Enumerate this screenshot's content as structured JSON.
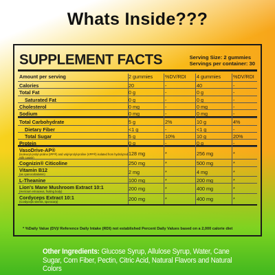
{
  "title": "Whats Inside???",
  "panel": {
    "heading": "SUPPLEMENT FACTS",
    "serving_size": "Serving Size:  2 gummies",
    "servings_per_container": "Servings per container: 30",
    "header": {
      "label": "Amount per serving",
      "col1": "2 gummies",
      "col2": "%DV/RDI",
      "col3": "4 gummies",
      "col4": "%DV/RDI"
    },
    "rows": [
      {
        "label": "Calories",
        "v1": "20",
        "d1": "-",
        "v2": "40",
        "d2": "-"
      },
      {
        "label": "Total Fat",
        "v1": "0 g",
        "d1": "-",
        "v2": "0 g",
        "d2": "-"
      },
      {
        "label": "Saturated Fat",
        "v1": "0 g",
        "d1": "-",
        "v2": "0 g",
        "d2": "-"
      },
      {
        "label": "Cholesterol",
        "v1": "0 mg",
        "d1": "-",
        "v2": "0 mg",
        "d2": "-"
      },
      {
        "label": "Sodium",
        "v1": "0 mg",
        "d1": "-",
        "v2": "0 mg",
        "d2": "-"
      },
      {
        "label": "Total Carbohydrate",
        "v1": "5 g",
        "d1": "2%",
        "v2": "10 g",
        "d2": "4%"
      },
      {
        "label": "Dietary Fiber",
        "v1": "<1 g",
        "d1": "-",
        "v2": "<1 g",
        "d2": "-"
      },
      {
        "label": "Total Sugar",
        "v1": "5 g",
        "d1": "10%",
        "v2": "10 g",
        "d2": "20%"
      },
      {
        "label": "Protein",
        "v1": "0 g",
        "d1": "-",
        "v2": "0 g",
        "d2": "-"
      },
      {
        "label": "VasoDrive-AP®",
        "note": "(isoleucyl-prolyl-proline (IPP®) and valyl-prolyl-proline (VPP®) isolated from hydrolyzed milk casein)",
        "v1": "128 mg",
        "d1": "*",
        "v2": "256 mg",
        "d2": "*"
      },
      {
        "label": "Cognizin® Citicoline",
        "v1": "250 mg",
        "d1": "*",
        "v2": "500 mg",
        "d2": "*"
      },
      {
        "label": "Vitamin B12",
        "note": "(as cyanocobalamin)",
        "v1": "2 mg",
        "d1": "*",
        "v2": "4 mg",
        "d2": "*"
      },
      {
        "label": "L-Theanine",
        "v1": "100 mg",
        "d1": "*",
        "v2": "200 mg",
        "d2": "*"
      },
      {
        "label": "Lion's Mane Mushroom Extract 10:1",
        "note": "(Hericium erinaceus, fruiting body)",
        "v1": "200 mg",
        "d1": "*",
        "v2": "400 mg",
        "d2": "*"
      },
      {
        "label": "Cordyceps Extract 10:1",
        "note": "(Cordyceps sinesis, sporocarp)",
        "v1": "200 mg",
        "d1": "*",
        "v2": "400 mg",
        "d2": "*"
      }
    ],
    "footnote": "*  %Daily Value (DV)/ Reference Daily Intake (RDI) not established Percent Daily Values based on a 2,000 calorie diet"
  },
  "ingredients": {
    "label": "Other Ingredients:",
    "text": " Glucose Syrup, Allulose Syrup, Water, Cane Sugar, Corn Fiber, Pectin, Citric Acid, Natural Flavors and Natural Colors"
  }
}
